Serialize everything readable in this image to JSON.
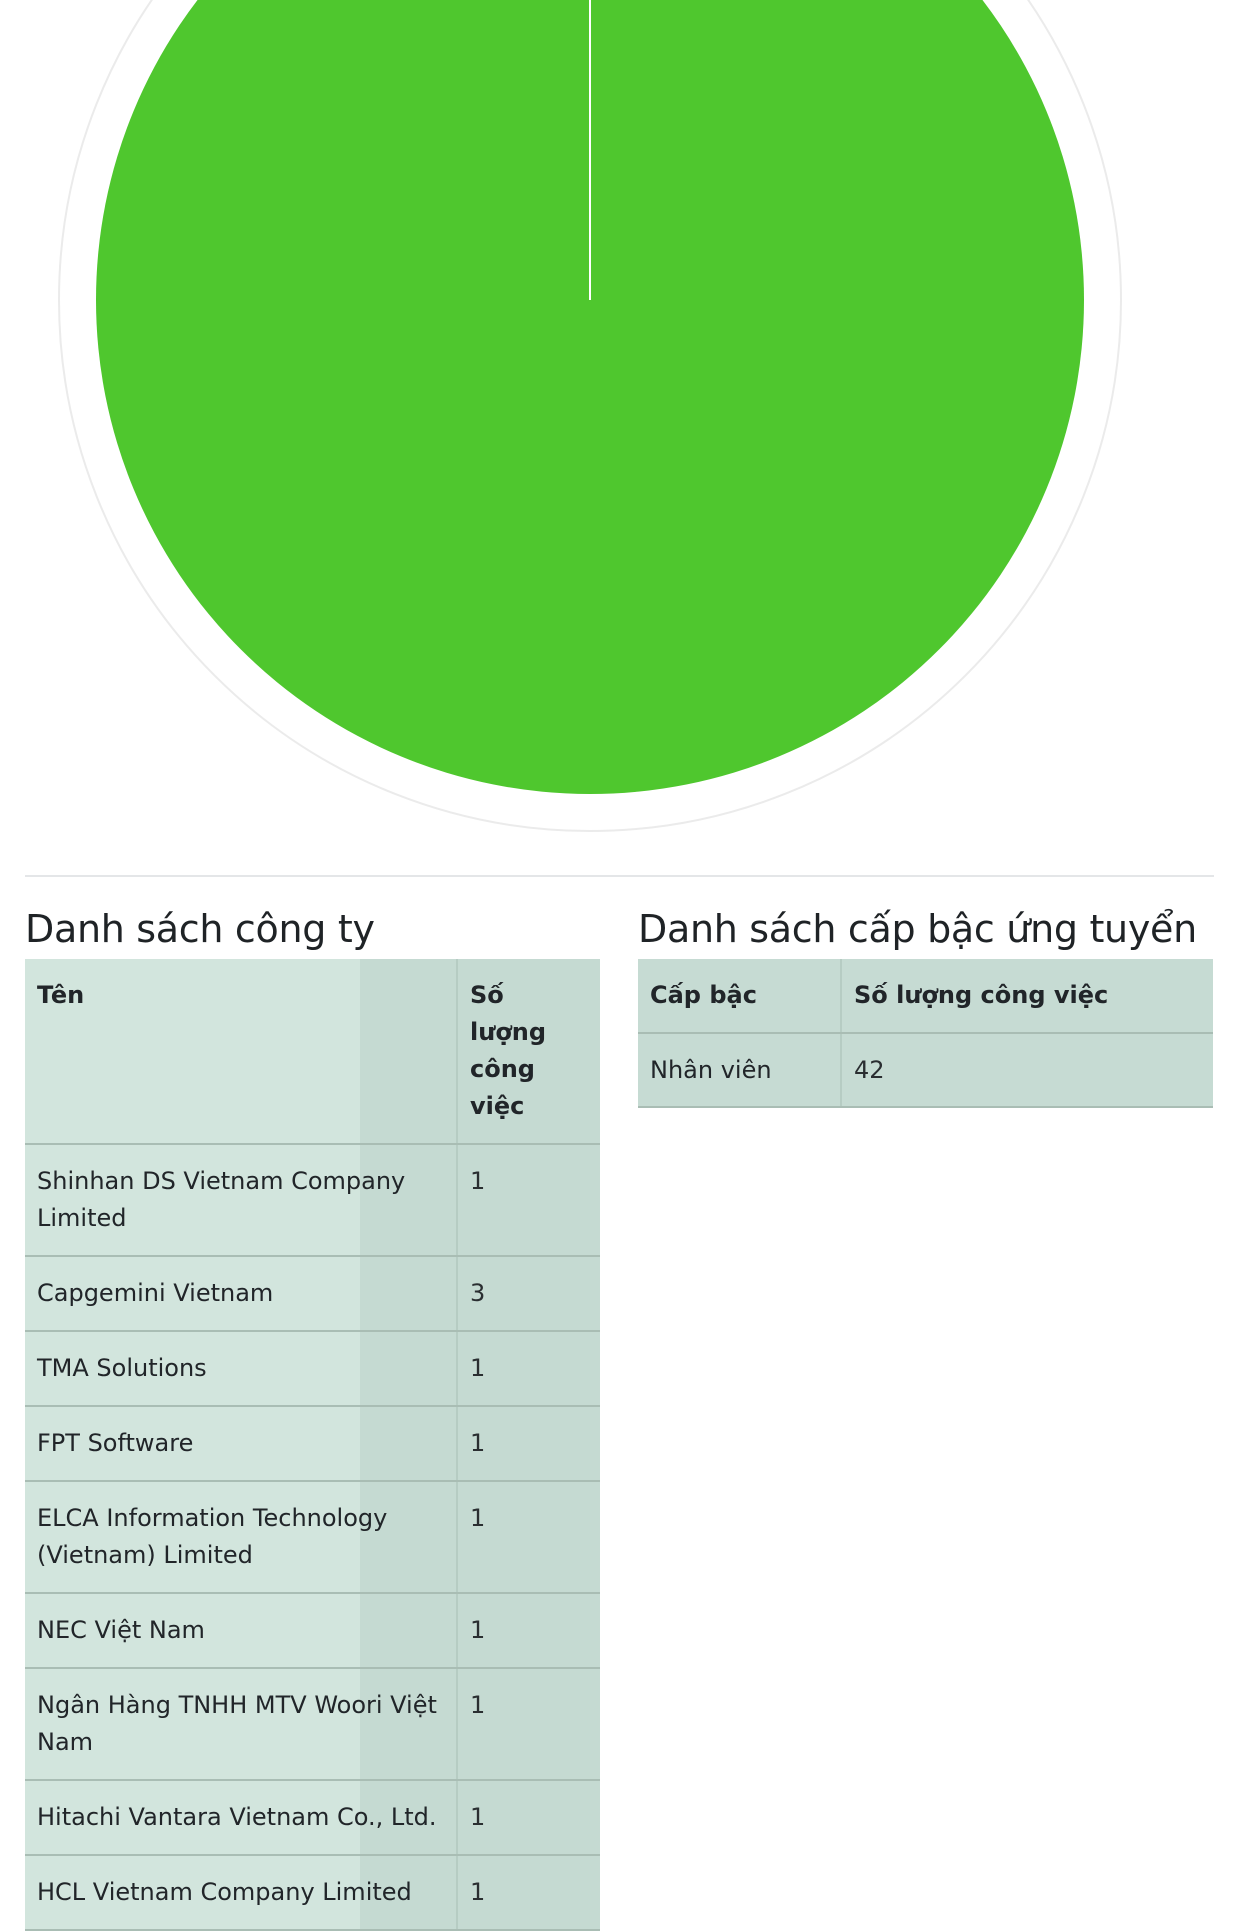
{
  "chart_data": {
    "type": "pie",
    "categories": [
      "Nhân viên"
    ],
    "values": [
      42
    ],
    "colors": [
      "#4fc72e"
    ],
    "title": ""
  },
  "companies": {
    "title": "Danh sách công ty",
    "headers": [
      "Tên",
      "Số lượng công việc"
    ],
    "rows": [
      {
        "name": "Shinhan DS Vietnam Company Limited",
        "count": "1"
      },
      {
        "name": "Capgemini Vietnam",
        "count": "3"
      },
      {
        "name": "TMA Solutions",
        "count": "1"
      },
      {
        "name": "FPT Software",
        "count": "1"
      },
      {
        "name": "ELCA Information Technology (Vietnam) Limited",
        "count": "1"
      },
      {
        "name": "NEC Việt Nam",
        "count": "1"
      },
      {
        "name": "Ngân Hàng TNHH MTV Woori Việt Nam",
        "count": "1"
      },
      {
        "name": "Hitachi Vantara Vietnam Co., Ltd.",
        "count": "1"
      },
      {
        "name": "HCL Vietnam Company Limited",
        "count": "1"
      }
    ]
  },
  "levels": {
    "title": "Danh sách cấp bậc ứng tuyển",
    "headers": [
      "Cấp bậc",
      "Số lượng công việc"
    ],
    "rows": [
      {
        "level": "Nhân viên",
        "count": "42"
      }
    ]
  }
}
